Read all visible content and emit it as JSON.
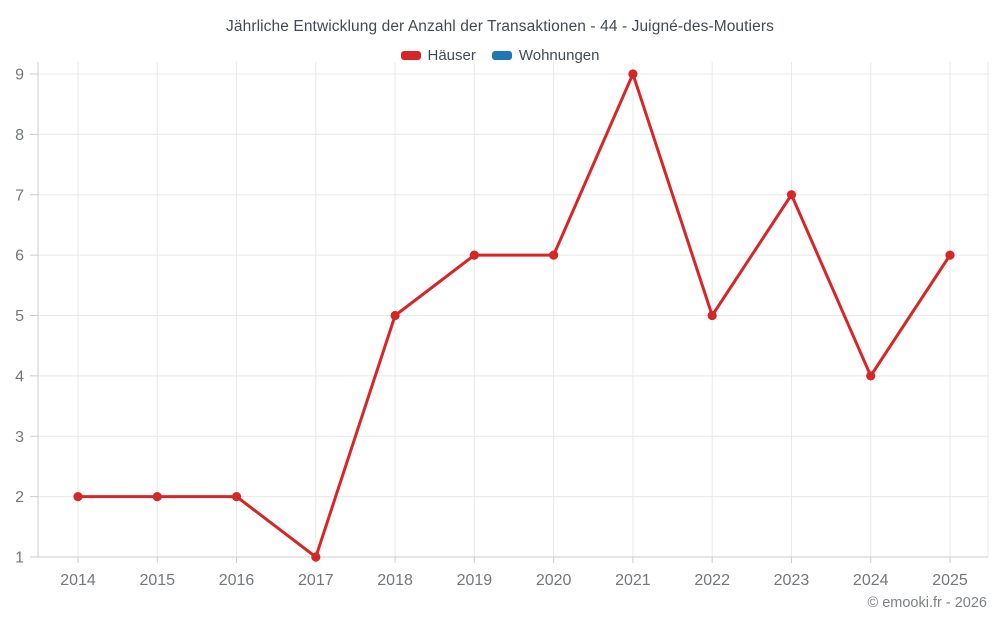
{
  "title": "Jährliche Entwicklung der Anzahl der Transaktionen - 44 - Juigné-des-Moutiers",
  "legend": {
    "items": [
      {
        "label": "Häuser",
        "color": "#d62728"
      },
      {
        "label": "Wohnungen",
        "color": "#1f77b4"
      }
    ]
  },
  "footer": {
    "copyright": "© emooki.fr - 2026"
  },
  "chart_data": {
    "type": "line",
    "title": "Jährliche Entwicklung der Anzahl der Transaktionen - 44 - Juigné-des-Moutiers",
    "categories": [
      "2014",
      "2015",
      "2016",
      "2017",
      "2018",
      "2019",
      "2020",
      "2021",
      "2022",
      "2023",
      "2024",
      "2025"
    ],
    "series": [
      {
        "name": "Häuser",
        "color": "#d62728",
        "values": [
          2,
          2,
          2,
          1,
          5,
          6,
          6,
          9,
          5,
          7,
          4,
          6
        ]
      },
      {
        "name": "Wohnungen",
        "color": "#1f77b4",
        "values": []
      }
    ],
    "xlabel": "",
    "ylabel": "",
    "ylim": [
      1,
      9
    ],
    "yticks": [
      1,
      2,
      3,
      4,
      5,
      6,
      7,
      8,
      9
    ],
    "grid": true,
    "legend_position": "top",
    "marker": "circle"
  }
}
